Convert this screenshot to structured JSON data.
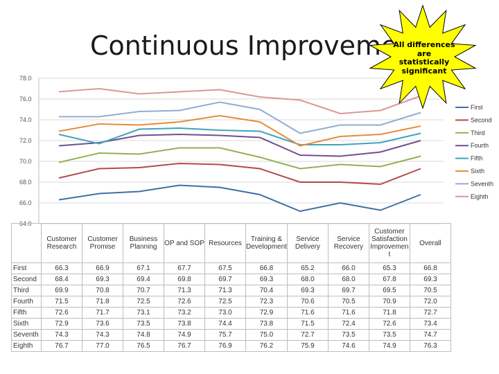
{
  "page_title": "Continuous Improvement",
  "callout": {
    "lines": [
      "All differences",
      "are",
      "statistically",
      "significant"
    ]
  },
  "chart_data": {
    "type": "line",
    "title": "Continuous Improvement",
    "categories": [
      "Customer Research",
      "Customer Promise",
      "Business Planning",
      "OP and SOP",
      "Resources",
      "Training & Development",
      "Service Delivery",
      "Service Recovery",
      "Customer Satisfaction Improvement",
      "Overall"
    ],
    "category_labels": [
      "Customer\nResearch",
      "Customer\nPromise",
      "Business\nPlanning",
      "OP and SOP",
      "Resources",
      "Training &\nDevelopment",
      "Service\nDelivery",
      "Service\nRecovery",
      "Customer\nSatisfaction\nImprovemen\nt",
      "Overall"
    ],
    "ylim": [
      64.0,
      78.0
    ],
    "yticks": [
      "64.0",
      "66.0",
      "68.0",
      "70.0",
      "72.0",
      "74.0",
      "76.0",
      "78.0"
    ],
    "grid": true,
    "legend_position": "right",
    "series": [
      {
        "name": "First",
        "color": "#3f6fa3",
        "values": [
          66.3,
          66.9,
          67.1,
          67.7,
          67.5,
          66.8,
          65.2,
          66.0,
          65.3,
          66.8
        ]
      },
      {
        "name": "Second",
        "color": "#b34a46",
        "values": [
          68.4,
          69.3,
          69.4,
          69.8,
          69.7,
          69.3,
          68.0,
          68.0,
          67.8,
          69.3
        ]
      },
      {
        "name": "Third",
        "color": "#93b150",
        "values": [
          69.9,
          70.8,
          70.7,
          71.3,
          71.3,
          70.4,
          69.3,
          69.7,
          69.5,
          70.5
        ]
      },
      {
        "name": "Fourth",
        "color": "#6f4f92",
        "values": [
          71.5,
          71.8,
          72.5,
          72.6,
          72.5,
          72.3,
          70.6,
          70.5,
          70.9,
          72.0
        ]
      },
      {
        "name": "Fifth",
        "color": "#3fa2bf",
        "values": [
          72.6,
          71.7,
          73.1,
          73.2,
          73.0,
          72.9,
          71.6,
          71.6,
          71.8,
          72.7
        ]
      },
      {
        "name": "Sixth",
        "color": "#e48d3a",
        "values": [
          72.9,
          73.6,
          73.5,
          73.8,
          74.4,
          73.8,
          71.5,
          72.4,
          72.6,
          73.4
        ]
      },
      {
        "name": "Seventh",
        "color": "#90acd3",
        "values": [
          74.3,
          74.3,
          74.8,
          74.9,
          75.7,
          75.0,
          72.7,
          73.5,
          73.5,
          74.7
        ]
      },
      {
        "name": "Eighth",
        "color": "#d89896",
        "values": [
          76.7,
          77.0,
          76.5,
          76.7,
          76.9,
          76.2,
          75.9,
          74.6,
          74.9,
          76.3
        ]
      }
    ],
    "table_rows": [
      {
        "label": "First",
        "cells": [
          "66.3",
          "66.9",
          "67.1",
          "67.7",
          "67.5",
          "66.8",
          "65.2",
          "66.0",
          "65.3",
          "66.8"
        ]
      },
      {
        "label": "Second",
        "cells": [
          "68.4",
          "69.3",
          "69.4",
          "69.8",
          "69.7",
          "69.3",
          "68.0",
          "68.0",
          "67.8",
          "69.3"
        ]
      },
      {
        "label": "Third",
        "cells": [
          "69.9",
          "70.8",
          "70.7",
          "71.3",
          "71.3",
          "70.4",
          "69.3",
          "69.7",
          "69.5",
          "70.5"
        ]
      },
      {
        "label": "Fourth",
        "cells": [
          "71.5",
          "71.8",
          "72.5",
          "72.6",
          "72.5",
          "72.3",
          "70.6",
          "70.5",
          "70.9",
          "72.0"
        ]
      },
      {
        "label": "Fifth",
        "cells": [
          "72.6",
          "71.7",
          "73.1",
          "73.2",
          "73.0",
          "72.9",
          "71.6",
          "71.6",
          "71.8",
          "72.7"
        ]
      },
      {
        "label": "Sixth",
        "cells": [
          "72.9",
          "73.6",
          "73.5",
          "73.8",
          "74.4",
          "73.8",
          "71.5",
          "72.4",
          "72.6",
          "73.4"
        ]
      },
      {
        "label": "Seventh",
        "cells": [
          "74.3",
          "74.3",
          "74.8",
          "74.9",
          "75.7",
          "75.0",
          "72.7",
          "73.5",
          "73.5",
          "74.7"
        ]
      },
      {
        "label": "Eighth",
        "cells": [
          "76.7",
          "77.0",
          "76.5",
          "76.7",
          "76.9",
          "76.2",
          "75.9",
          "74.6",
          "74.9",
          "76.3"
        ]
      }
    ]
  }
}
